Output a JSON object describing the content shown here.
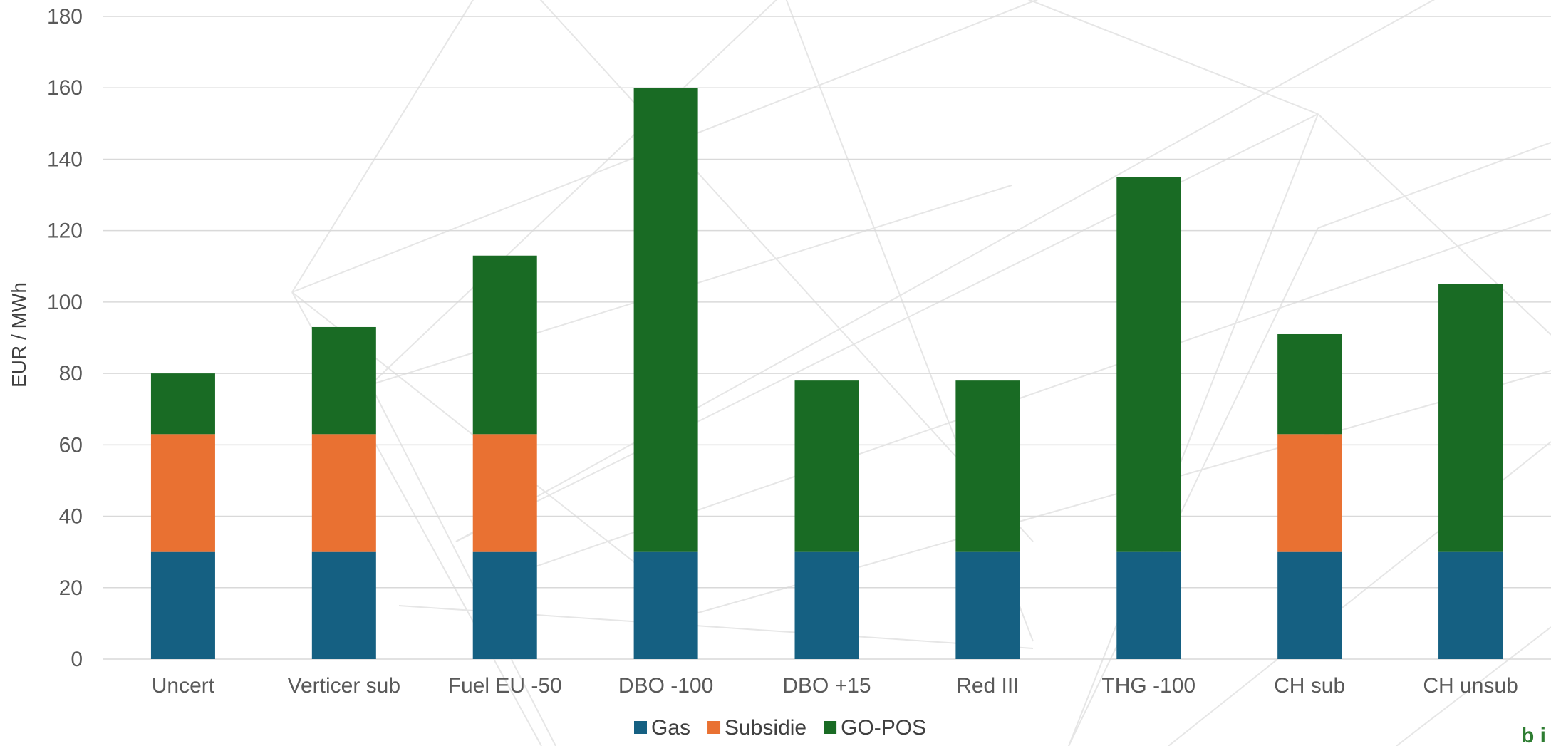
{
  "chart_data": {
    "type": "bar",
    "stacked": true,
    "ylabel": "EUR / MWh",
    "ylim": [
      0,
      180
    ],
    "yticks": [
      0,
      20,
      40,
      60,
      80,
      100,
      120,
      140,
      160,
      180
    ],
    "grid": true,
    "legend_position": "bottom",
    "categories": [
      "Uncert",
      "Verticer sub",
      "Fuel EU -50",
      "DBO -100",
      "DBO +15",
      "Red III",
      "THG -100",
      "CH sub",
      "CH unsub"
    ],
    "series": [
      {
        "name": "Gas",
        "color": "#156082",
        "values": [
          30,
          30,
          30,
          30,
          30,
          30,
          30,
          30,
          30
        ]
      },
      {
        "name": "Subsidie",
        "color": "#E97132",
        "values": [
          33,
          33,
          33,
          0,
          0,
          0,
          0,
          33,
          0
        ]
      },
      {
        "name": "GO-POS",
        "color": "#196B24",
        "values": [
          17,
          30,
          50,
          130,
          48,
          48,
          105,
          28,
          75
        ]
      }
    ]
  },
  "colors": {
    "gridline": "#d9d9d9",
    "watermark": "#e6e6e6",
    "logo": "#2e7d32"
  },
  "logo_text": "b i"
}
